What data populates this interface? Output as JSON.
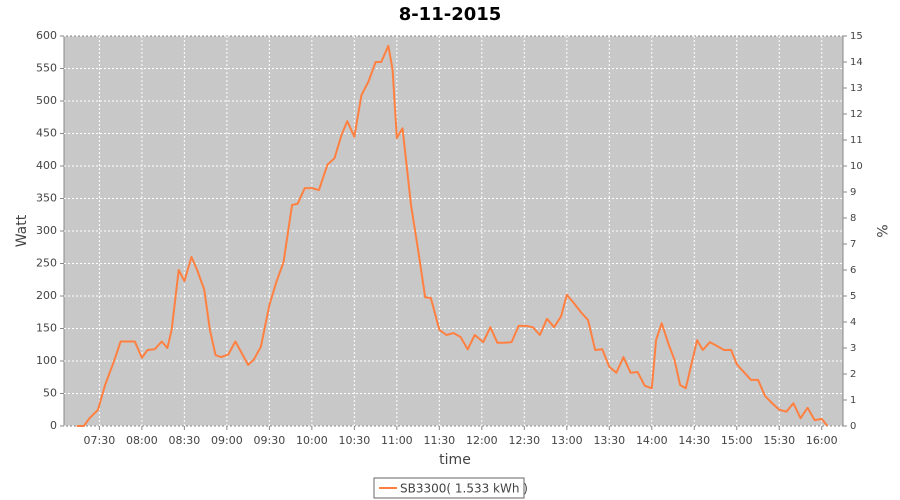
{
  "chart_data": {
    "type": "line",
    "title": "8-11-2015",
    "x_label": "time",
    "y_label": "Watt",
    "y2_label": "%",
    "x": [
      "07:14",
      "07:19",
      "07:23",
      "07:29",
      "07:34",
      "07:40",
      "07:45",
      "07:50",
      "07:55",
      "08:00",
      "08:04",
      "08:09",
      "08:14",
      "08:18",
      "08:21",
      "08:26",
      "08:30",
      "08:35",
      "08:39",
      "08:44",
      "08:48",
      "08:52",
      "08:56",
      "09:01",
      "09:06",
      "09:10",
      "09:15",
      "09:19",
      "09:24",
      "09:30",
      "09:35",
      "09:40",
      "09:46",
      "09:50",
      "09:55",
      "10:00",
      "10:05",
      "10:11",
      "10:16",
      "10:21",
      "10:25",
      "10:30",
      "10:35",
      "10:40",
      "10:45",
      "10:49",
      "10:54",
      "10:57",
      "11:00",
      "11:04",
      "11:10",
      "11:15",
      "11:20",
      "11:24",
      "11:30",
      "11:35",
      "11:40",
      "11:45",
      "11:50",
      "11:55",
      "12:01",
      "12:06",
      "12:11",
      "12:16",
      "12:21",
      "12:26",
      "12:31",
      "12:36",
      "12:41",
      "12:46",
      "12:51",
      "12:56",
      "13:00",
      "13:05",
      "13:10",
      "13:15",
      "13:20",
      "13:25",
      "13:30",
      "13:35",
      "13:40",
      "13:45",
      "13:50",
      "13:55",
      "14:00",
      "14:03",
      "14:07",
      "14:12",
      "14:16",
      "14:20",
      "14:24",
      "14:27",
      "14:32",
      "14:36",
      "14:41",
      "14:46",
      "14:51",
      "14:56",
      "15:00",
      "15:05",
      "15:10",
      "15:15",
      "15:20",
      "15:25",
      "15:30",
      "15:35",
      "15:40",
      "15:45",
      "15:50",
      "15:55",
      "16:00",
      "16:04"
    ],
    "series": [
      {
        "name": "SB3300( 1.533 kWh )",
        "color": "#ff8040",
        "values": [
          0,
          0,
          12,
          25,
          63,
          98,
          130,
          130,
          130,
          105,
          117,
          118,
          130,
          120,
          148,
          240,
          223,
          260,
          240,
          210,
          148,
          109,
          106,
          110,
          130,
          114,
          94,
          102,
          122,
          186,
          222,
          252,
          340,
          342,
          366,
          366,
          363,
          402,
          412,
          448,
          469,
          445,
          509,
          530,
          560,
          560,
          585,
          548,
          443,
          458,
          340,
          271,
          198,
          197,
          148,
          140,
          143,
          137,
          118,
          140,
          129,
          152,
          128,
          128,
          129,
          154,
          154,
          152,
          140,
          165,
          152,
          169,
          202,
          189,
          175,
          163,
          117,
          118,
          91,
          82,
          106,
          82,
          83,
          62,
          58,
          132,
          158,
          125,
          102,
          63,
          58,
          86,
          132,
          117,
          129,
          123,
          117,
          117,
          95,
          83,
          71,
          71,
          46,
          35,
          25,
          22,
          35,
          12,
          28,
          9,
          11,
          0
        ]
      }
    ],
    "xlim": [
      "07:05",
      "16:15"
    ],
    "xticks": [
      "07:30",
      "08:00",
      "08:30",
      "09:00",
      "09:30",
      "10:00",
      "10:30",
      "11:00",
      "11:30",
      "12:00",
      "12:30",
      "13:00",
      "13:30",
      "14:00",
      "14:30",
      "15:00",
      "15:30",
      "16:00"
    ],
    "ylim": [
      0,
      600
    ],
    "yticks": [
      0,
      50,
      100,
      150,
      200,
      250,
      300,
      350,
      400,
      450,
      500,
      550,
      600
    ],
    "y2lim": [
      0,
      15
    ],
    "y2ticks": [
      0,
      1,
      2,
      3,
      4,
      5,
      6,
      7,
      8,
      9,
      10,
      11,
      12,
      13,
      14,
      15
    ],
    "grid": true
  }
}
